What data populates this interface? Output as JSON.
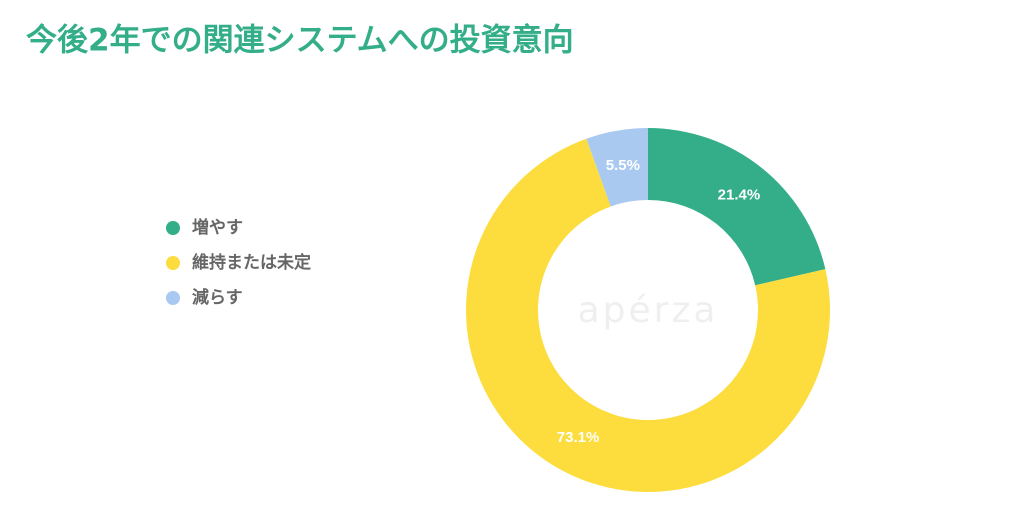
{
  "chart_data": {
    "type": "donut",
    "title": "今後2年での関連システムへの投資意向",
    "categories": [
      "増やす",
      "維持または未定",
      "減らす"
    ],
    "values": [
      21.4,
      73.1,
      5.5
    ],
    "value_labels": [
      "21.4%",
      "73.1%",
      "5.5%"
    ],
    "colors": [
      "#33ae88",
      "#fcdd3d",
      "#a9c9f1"
    ],
    "watermark": "apérza"
  }
}
